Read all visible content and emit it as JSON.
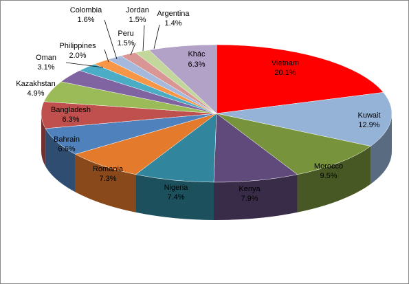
{
  "chart_data": {
    "type": "pie",
    "categories": [
      "Vietnam",
      "Kuwait",
      "Morocco",
      "Kenya",
      "Nigeria",
      "Romania",
      "Bahrain",
      "Bangladesh",
      "Kazakhstan",
      "Oman",
      "Philippines",
      "Colombia",
      "Peru",
      "Jordan",
      "Argentina",
      "Khác"
    ],
    "values": [
      20.1,
      12.9,
      9.5,
      7.9,
      7.4,
      7.3,
      6.6,
      6.3,
      4.9,
      3.1,
      2.0,
      1.6,
      1.5,
      1.5,
      1.4,
      6.3
    ],
    "value_labels": [
      "20.1%",
      "12.9%",
      "9.5%",
      "7.9%",
      "7.4%",
      "7.3%",
      "6.6%",
      "6.3%",
      "4.9%",
      "3.1%",
      "2.0%",
      "1.6%",
      "1.5%",
      "1.5%",
      "1.4%",
      "6.3%"
    ],
    "colors": [
      "#ff0000",
      "#95b3d7",
      "#77933c",
      "#604a7b",
      "#31859c",
      "#e47b2c",
      "#4f81bd",
      "#c0504d",
      "#9bbb59",
      "#8064a2",
      "#4bacc6",
      "#f79646",
      "#a5b9dd",
      "#d99694",
      "#c3d69b",
      "#b3a2c7"
    ]
  }
}
